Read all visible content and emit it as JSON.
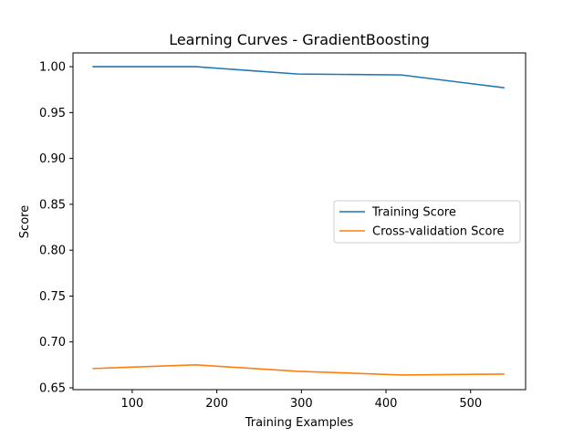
{
  "chart_data": {
    "type": "line",
    "title": "Learning Curves - GradientBoosting",
    "xlabel": "Training Examples",
    "ylabel": "Score",
    "xlim": [
      30,
      565
    ],
    "ylim": [
      0.648,
      1.015
    ],
    "xticks": [
      100,
      200,
      300,
      400,
      500
    ],
    "yticks": [
      0.65,
      0.7,
      0.75,
      0.8,
      0.85,
      0.9,
      0.95,
      1.0
    ],
    "grid": false,
    "legend_position": "center-right",
    "series": [
      {
        "name": "Training Score",
        "color": "#1f77b4",
        "x": [
          53,
          175,
          296,
          418,
          540
        ],
        "y": [
          1.0,
          1.0,
          0.992,
          0.991,
          0.977
        ]
      },
      {
        "name": "Cross-validation Score",
        "color": "#ff7f0e",
        "x": [
          53,
          175,
          296,
          418,
          540
        ],
        "y": [
          0.671,
          0.675,
          0.668,
          0.664,
          0.665
        ]
      }
    ]
  }
}
